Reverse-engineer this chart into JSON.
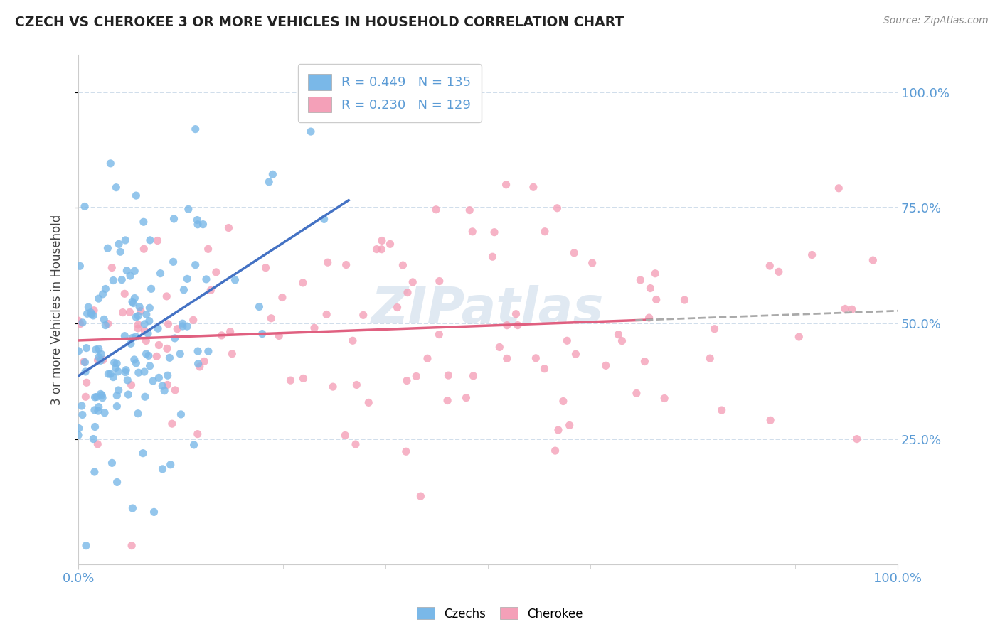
{
  "title": "CZECH VS CHEROKEE 3 OR MORE VEHICLES IN HOUSEHOLD CORRELATION CHART",
  "source": "Source: ZipAtlas.com",
  "ylabel": "3 or more Vehicles in Household",
  "xlim": [
    0.0,
    1.0
  ],
  "ylim": [
    -0.02,
    1.08
  ],
  "y_tick_labels": [
    "25.0%",
    "50.0%",
    "75.0%",
    "100.0%"
  ],
  "y_tick_positions": [
    0.25,
    0.5,
    0.75,
    1.0
  ],
  "czechs_color": "#7ab8e8",
  "cherokee_color": "#f4a0b8",
  "trendline_czech_color": "#4472c4",
  "trendline_cherokee_color": "#e06080",
  "trendline_dash_color": "#aaaaaa",
  "background_color": "#ffffff",
  "grid_color": "#c8d8e8",
  "czechs_R": 0.449,
  "czechs_N": 135,
  "cherokee_R": 0.23,
  "cherokee_N": 129,
  "seed": 42
}
